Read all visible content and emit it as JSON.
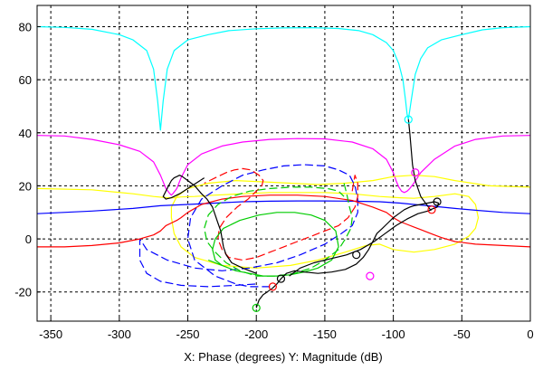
{
  "chart_data": {
    "type": "line",
    "xlabel": "X: Phase (degrees)  Y: Magnitude (dB)",
    "xlim": [
      -360,
      0
    ],
    "ylim": [
      -31,
      88
    ],
    "xticks": [
      -350,
      -300,
      -250,
      -200,
      -150,
      -100,
      -50,
      0
    ],
    "yticks": [
      -20,
      0,
      20,
      40,
      60,
      80
    ],
    "grid": true,
    "series": [
      {
        "color": "#00ffff",
        "dash": false,
        "x": [
          -360,
          -340,
          -320,
          -300,
          -290,
          -280,
          -275,
          -272,
          -270,
          -268,
          -265,
          -260,
          -250,
          -235,
          -220,
          -200,
          -180,
          -160,
          -140,
          -125,
          -115,
          -105,
          -100,
          -96,
          -93,
          -91,
          -90,
          -89,
          -87,
          -84,
          -80,
          -75,
          -65,
          -50,
          -35,
          -20,
          0
        ],
        "y": [
          80,
          79.7,
          79,
          77,
          75,
          71,
          64,
          52,
          41,
          52,
          64,
          71,
          75,
          77,
          78.5,
          79.2,
          79.5,
          79.6,
          79.3,
          78.5,
          77,
          74,
          71,
          66,
          60,
          52,
          47,
          45,
          52,
          62,
          68,
          72,
          75,
          77,
          78.8,
          79.6,
          80
        ]
      },
      {
        "color": "#ff00ff",
        "dash": false,
        "x": [
          -360,
          -340,
          -320,
          -300,
          -285,
          -275,
          -270,
          -266,
          -263,
          -262,
          -261,
          -258,
          -255,
          -250,
          -240,
          -225,
          -210,
          -190,
          -170,
          -150,
          -130,
          -115,
          -105,
          -100,
          -98,
          -96,
          -94,
          -92,
          -90,
          -88,
          -85,
          -80,
          -70,
          -55,
          -40,
          -20,
          0
        ],
        "y": [
          39,
          38.8,
          37.5,
          35.5,
          33,
          29,
          24,
          19,
          17,
          16.5,
          17,
          19,
          23,
          28,
          32,
          35,
          36.5,
          37.5,
          37.8,
          37.7,
          36.5,
          34,
          30,
          25,
          22,
          19.5,
          18,
          17.5,
          18,
          19,
          21,
          25,
          30,
          35,
          37.5,
          38.8,
          39
        ]
      },
      {
        "color": "#ffff00",
        "dash": false,
        "x": [
          -360,
          -320,
          -290,
          -275,
          -265,
          -260,
          -255,
          -245,
          -230,
          -210,
          -190,
          -170,
          -150,
          -130,
          -110,
          -95,
          -85,
          -70,
          -55,
          -45,
          -40,
          -38,
          -40,
          -45,
          -55,
          -70,
          -85,
          -100,
          -110,
          -120,
          -135,
          -155,
          -175,
          -200,
          -225,
          -245,
          -255,
          -260,
          -262,
          -262,
          -258,
          -250,
          -235,
          -215,
          -195,
          -175,
          -155,
          -135,
          -115,
          -100,
          -85,
          -70,
          -55,
          -30,
          0
        ],
        "y": [
          19,
          18.5,
          17,
          16,
          15.5,
          15.5,
          15.8,
          16,
          16.5,
          17,
          17.5,
          17.5,
          17.5,
          17,
          16,
          15.5,
          15.3,
          16,
          17,
          16,
          13,
          8,
          4,
          1,
          -2,
          -4,
          -5,
          -4,
          -2,
          -2.5,
          -5,
          -8,
          -10,
          -11,
          -10,
          -7,
          -3,
          2,
          8,
          12,
          16,
          19,
          21,
          22,
          21.5,
          21,
          20.5,
          21,
          22,
          23.5,
          24,
          23.5,
          22,
          20,
          19.5
        ]
      },
      {
        "color": "#0000ff",
        "dash": false,
        "x": [
          -360,
          -320,
          -290,
          -270,
          -250,
          -230,
          -210,
          -190,
          -170,
          -150,
          -130,
          -110,
          -95,
          -85,
          -75,
          -65,
          -55,
          -40,
          -20,
          0
        ],
        "y": [
          9.5,
          10.5,
          11.5,
          12.5,
          13,
          13.5,
          14,
          14.2,
          14.3,
          14.3,
          14.2,
          14,
          13.5,
          13,
          12.5,
          12,
          11.5,
          10.8,
          10,
          9.5
        ]
      },
      {
        "color": "#0000ff",
        "dash": true,
        "x": [
          -190,
          -205,
          -215,
          -230,
          -245,
          -250,
          -248,
          -240,
          -225,
          -210,
          -195,
          -180,
          -165,
          -150,
          -140,
          -132,
          -128,
          -126,
          -126,
          -130,
          -138,
          -150,
          -168,
          -185,
          -205,
          -225,
          -245,
          -265,
          -280,
          -285,
          -285,
          -280,
          -270,
          -255,
          -235,
          -215,
          -200
        ],
        "y": [
          -18,
          -18,
          -17,
          -14,
          -8,
          0,
          8,
          15,
          20,
          24,
          26,
          27.5,
          28,
          27.5,
          26,
          24,
          20,
          15,
          10,
          5,
          2,
          -2,
          -6,
          -9,
          -11,
          -12,
          -11,
          -8,
          -4,
          0,
          -8,
          -13,
          -16,
          -17.5,
          -18,
          -17.5,
          -17
        ]
      },
      {
        "color": "#ff0000",
        "dash": false,
        "x": [
          -360,
          -340,
          -320,
          -300,
          -285,
          -275,
          -270,
          -266,
          -262,
          -258,
          -255,
          -250,
          -240,
          -225,
          -210,
          -190,
          -170,
          -150,
          -130,
          -115,
          -105,
          -100,
          -95,
          -90,
          -85,
          -80,
          -75,
          -70,
          -65,
          -55,
          -40,
          -20,
          0
        ],
        "y": [
          -3,
          -3,
          -2.5,
          -1.5,
          0,
          1.5,
          3,
          5,
          6,
          7,
          8,
          10,
          13,
          15,
          16,
          16.5,
          16.5,
          16,
          14.5,
          12,
          10,
          8,
          6.5,
          5.5,
          4.5,
          3.5,
          2.5,
          1.5,
          0.5,
          -1,
          -2,
          -2.5,
          -3
        ]
      },
      {
        "color": "#ff0000",
        "dash": true,
        "x": [
          -130,
          -128,
          -126,
          -126,
          -128,
          -133,
          -140,
          -150,
          -160,
          -170,
          -180,
          -190,
          -200,
          -210,
          -220,
          -225,
          -228,
          -227,
          -222,
          -214,
          -206,
          -200,
          -196,
          -195,
          -198,
          -204,
          -210,
          -216,
          -222,
          -230,
          -238
        ],
        "y": [
          18,
          24,
          21,
          16,
          12,
          8,
          5,
          3,
          1,
          -1,
          -3,
          -5,
          -7,
          -8,
          -7,
          -4,
          0,
          4,
          8,
          12,
          15,
          18,
          20,
          22,
          24,
          26,
          26.5,
          26,
          25,
          23,
          21
        ]
      },
      {
        "color": "#00cc00",
        "dash": true,
        "x": [
          -136,
          -134,
          -132,
          -130,
          -131,
          -135,
          -140,
          -150,
          -160,
          -172,
          -186,
          -200,
          -212,
          -222,
          -230,
          -236,
          -238,
          -235,
          -228,
          -218,
          -205,
          -190,
          -175,
          -160,
          -148,
          -140,
          -136
        ],
        "y": [
          21,
          17,
          12,
          8,
          4,
          0,
          -4,
          -8,
          -11,
          -13,
          -14,
          -14,
          -12,
          -9,
          -5,
          -1,
          4,
          9,
          13,
          16,
          18,
          19,
          19.5,
          19.5,
          19,
          18,
          16
        ]
      },
      {
        "color": "#00cc00",
        "dash": false,
        "x": [
          -235,
          -225,
          -215,
          -205,
          -195,
          -185,
          -175,
          -165,
          -155,
          -145,
          -140,
          -142,
          -150,
          -160,
          -172,
          -185,
          -198,
          -212,
          -224,
          -230,
          -232,
          -230,
          -225
        ],
        "y": [
          -8,
          -10,
          -12,
          -13,
          -14,
          -14,
          -13.5,
          -12.5,
          -11,
          -8,
          -3,
          3,
          7,
          9,
          10,
          10,
          9,
          7,
          4,
          0,
          -4,
          -8,
          -10
        ]
      },
      {
        "color": "#000000",
        "dash": false,
        "x": [
          -200,
          -198,
          -195,
          -192,
          -188,
          -185,
          -182,
          -178,
          -172,
          -165,
          -155,
          -145,
          -135,
          -127,
          -122,
          -118,
          -115,
          -112,
          -108,
          -104,
          -100,
          -96,
          -92,
          -88,
          -85,
          -80,
          -75,
          -70,
          -67,
          -68,
          -73,
          -80,
          -84,
          -86,
          -87,
          -88,
          -89
        ],
        "y": [
          -26,
          -23,
          -21,
          -20,
          -18.5,
          -17,
          -15,
          -13,
          -12,
          -12.5,
          -13,
          -12.5,
          -11.5,
          -9.5,
          -7,
          -4,
          -1,
          2,
          4,
          6,
          8,
          9.5,
          11,
          12,
          12.5,
          13,
          13.5,
          14,
          13.5,
          12,
          11,
          16,
          22,
          28,
          34,
          40,
          45
        ]
      },
      {
        "color": "#000000",
        "dash": false,
        "x": [
          -176,
          -168,
          -158,
          -146,
          -134,
          -124,
          -114,
          -106,
          -98,
          -90,
          -82,
          -75,
          -72
        ],
        "y": [
          -14,
          -11,
          -9,
          -7.5,
          -6,
          -4,
          -1,
          2,
          5,
          7.5,
          9.5,
          10.5,
          11
        ]
      },
      {
        "color": "#000000",
        "dash": false,
        "x": [
          -200,
          -210,
          -218,
          -222,
          -224,
          -225,
          -226,
          -228,
          -230,
          -232,
          -236,
          -240,
          -245,
          -250,
          -254,
          -256,
          -258,
          -260,
          -262,
          -264,
          -266,
          -268,
          -266,
          -262,
          -256,
          -250,
          -244,
          -238
        ],
        "y": [
          -13,
          -11,
          -9,
          -6,
          -3,
          0,
          3,
          6,
          9,
          12,
          15,
          17,
          20,
          22,
          23.5,
          24,
          23.5,
          23,
          22,
          20,
          18,
          16,
          15,
          15.5,
          17,
          19,
          21,
          23
        ]
      }
    ],
    "markers": [
      {
        "x": -89,
        "y": 45,
        "color": "#00ffff"
      },
      {
        "x": -84,
        "y": 25,
        "color": "#ff00ff"
      },
      {
        "x": -68,
        "y": 14,
        "color": "#000000"
      },
      {
        "x": -72,
        "y": 11,
        "color": "#ff0000"
      },
      {
        "x": -117,
        "y": -14,
        "color": "#ff00ff"
      },
      {
        "x": -127,
        "y": -6,
        "color": "#000000"
      },
      {
        "x": -182,
        "y": -15,
        "color": "#000000"
      },
      {
        "x": -188,
        "y": -18,
        "color": "#ff0000"
      },
      {
        "x": -200,
        "y": -26,
        "color": "#00cc00"
      }
    ]
  }
}
